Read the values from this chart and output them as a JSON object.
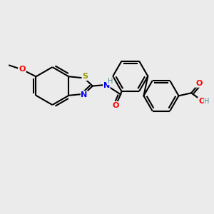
{
  "background_color": "#ebebeb",
  "line_color": "#000000",
  "line_width": 1.5,
  "figsize": [
    3.0,
    3.0
  ],
  "dpi": 100,
  "colors": {
    "S": "#999900",
    "N": "#0000ff",
    "O": "#ff0000",
    "H": "#4a8a9a",
    "C": "#000000"
  }
}
